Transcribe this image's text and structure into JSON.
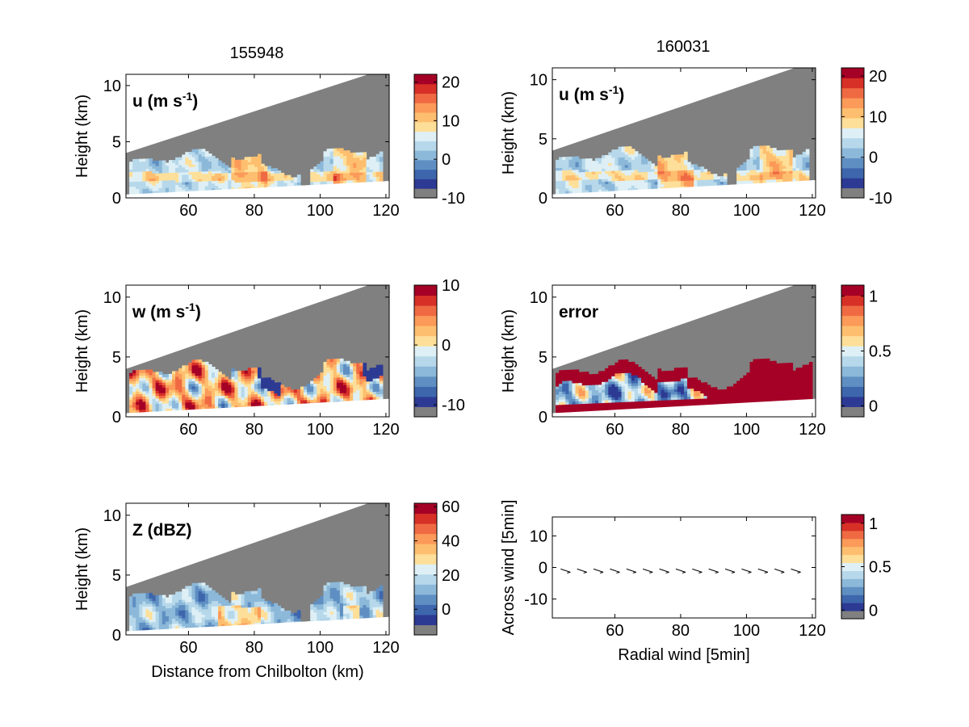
{
  "figure": {
    "title_left": "155948",
    "title_right": "160031"
  },
  "colors": {
    "missing": "#808080",
    "palette": [
      "#2d3a93",
      "#3d66ad",
      "#5f8fc2",
      "#8cb8d9",
      "#b6d8ea",
      "#def0f6",
      "#fedf99",
      "#fdbf6f",
      "#fb9a59",
      "#ef6a43",
      "#d73027",
      "#a50026"
    ]
  },
  "chart_data": [
    {
      "type": "heatmap",
      "panel": "top-left",
      "title": "155948",
      "annotation": "u (m s",
      "annotation_sup": "-1",
      "ylabel": "Height (km)",
      "xlabel": "",
      "xlim": [
        41,
        121
      ],
      "ylim": [
        0,
        11
      ],
      "xticks": [
        "60",
        "80",
        "100",
        "120"
      ],
      "yticks": [
        "0",
        "5",
        "10"
      ],
      "colorbar": {
        "ticks": [
          "20",
          "10",
          "0",
          "-10"
        ],
        "range": [
          -10,
          22
        ]
      },
      "field": "u"
    },
    {
      "type": "heatmap",
      "panel": "top-right",
      "title": "160031",
      "annotation": "u (m s",
      "annotation_sup": "-1",
      "ylabel": "Height (km)",
      "xlabel": "",
      "xlim": [
        41,
        121
      ],
      "ylim": [
        0,
        11
      ],
      "xticks": [
        "60",
        "80",
        "100",
        "120"
      ],
      "yticks": [
        "0",
        "5",
        "10"
      ],
      "colorbar": {
        "ticks": [
          "20",
          "10",
          "0",
          "-10"
        ],
        "range": [
          -10,
          22
        ]
      },
      "field": "u"
    },
    {
      "type": "heatmap",
      "panel": "middle-left",
      "annotation": "w (m s",
      "annotation_sup": "-1",
      "ylabel": "Height (km)",
      "xlabel": "",
      "xlim": [
        41,
        121
      ],
      "ylim": [
        0,
        11
      ],
      "xticks": [
        "60",
        "80",
        "100",
        "120"
      ],
      "yticks": [
        "0",
        "5",
        "10"
      ],
      "colorbar": {
        "ticks": [
          "10",
          "0",
          "-10"
        ],
        "range": [
          -12,
          10
        ]
      },
      "field": "w"
    },
    {
      "type": "heatmap",
      "panel": "middle-right",
      "annotation": "error",
      "annotation_sup": "",
      "ylabel": "Height (km)",
      "xlabel": "",
      "xlim": [
        41,
        121
      ],
      "ylim": [
        0,
        11
      ],
      "xticks": [
        "60",
        "80",
        "100",
        "120"
      ],
      "yticks": [
        "0",
        "5",
        "10"
      ],
      "colorbar": {
        "ticks": [
          "1",
          "0.5",
          "0"
        ],
        "range": [
          -0.1,
          1.1
        ]
      },
      "field": "error"
    },
    {
      "type": "heatmap",
      "panel": "bottom-left",
      "annotation": "Z (dBZ)",
      "annotation_sup": "",
      "ylabel": "Height (km)",
      "xlabel": "Distance from Chilbolton (km)",
      "xlim": [
        41,
        121
      ],
      "ylim": [
        0,
        11
      ],
      "xticks": [
        "60",
        "80",
        "100",
        "120"
      ],
      "yticks": [
        "0",
        "5",
        "10"
      ],
      "colorbar": {
        "ticks": [
          "60",
          "40",
          "20",
          "0"
        ],
        "range": [
          -15,
          62
        ]
      },
      "field": "Z"
    },
    {
      "type": "scatter",
      "panel": "bottom-right",
      "annotation": "",
      "ylabel": "Across wind [5min]",
      "xlabel": "Radial wind [5min]",
      "xlim": [
        41,
        121
      ],
      "ylim": [
        -16,
        16
      ],
      "xticks": [
        "60",
        "80",
        "100",
        "120"
      ],
      "yticks": [
        "10",
        "0",
        "-10"
      ],
      "colorbar": {
        "ticks": [
          "1",
          "0.5",
          "0"
        ],
        "range": [
          -0.1,
          1.1
        ]
      },
      "arrows_x": [
        45,
        50,
        55,
        60,
        65,
        70,
        75,
        80,
        85,
        90,
        95,
        100,
        105,
        110,
        115
      ],
      "arrows_y": -1
    }
  ]
}
